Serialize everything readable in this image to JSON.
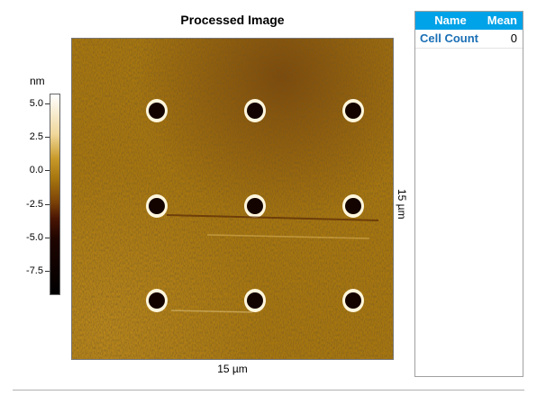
{
  "image_panel": {
    "title": "Processed Image",
    "colorbar": {
      "unit": "nm",
      "ticks": [
        "5.0",
        "2.5",
        "0.0",
        "-2.5",
        "-5.0",
        "-7.5"
      ]
    },
    "x_dimension_label": "15 µm",
    "y_dimension_label": "15 µm",
    "feature_grid": "3x3"
  },
  "results_table": {
    "columns": [
      "Name",
      "Mean"
    ],
    "rows": [
      {
        "name": "Cell Count",
        "mean": "0"
      }
    ]
  },
  "colors": {
    "header_background": "#00a2e8",
    "name_text": "#1a6fb5",
    "afm_base": "#a7760f"
  }
}
